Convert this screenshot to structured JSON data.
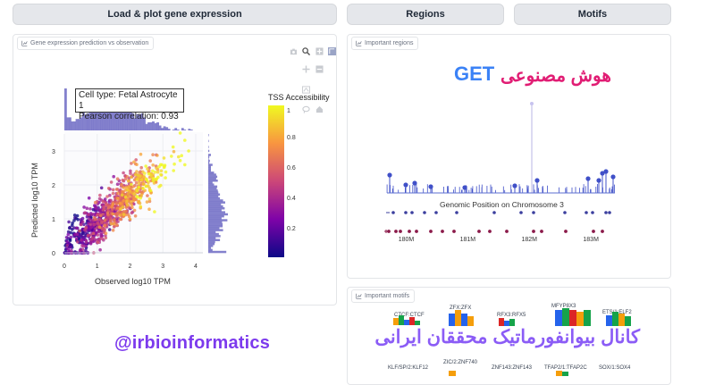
{
  "buttons": {
    "load_plot": "Load & plot gene expression",
    "regions": "Regions",
    "motifs": "Motifs"
  },
  "panels": {
    "gene_expression": {
      "tag": "Gene expression prediction vs observation",
      "annotation_line1": "Cell type: Fetal Astrocyte 1",
      "annotation_line2": "Pearson correlation: 0.93",
      "xlabel": "Observed log10 TPM",
      "ylabel": "Predicted log10 TPM",
      "colorbar_title": "TSS Accessibility"
    },
    "regions": {
      "tag": "Important regions",
      "axis_title": "Genomic Position on Chromosome 3"
    },
    "motifs": {
      "tag": "Important motifs",
      "labels_top": [
        "CTCF:CTCF",
        "ZFX:ZFX",
        "RFX3:RFX5",
        "MFYP8X3",
        "ETS/1:ELF2"
      ],
      "labels_bottom": [
        "KLF/SP/2:KLF12",
        "ZIC/2:ZNF740",
        "ZNF143:ZNF143",
        "TFAP2/1:TFAP2C",
        "SOX/1:SOX4"
      ]
    }
  },
  "watermarks": {
    "get": "GET",
    "persian_title": "هوش مصنوعی",
    "handle": "@irbioinformatics",
    "persian_channel": "کانال بیوانفورماتیک محققان ایرانی"
  },
  "colors": {
    "scatter_cmap": [
      "#0d0887",
      "#7e03a8",
      "#cc4778",
      "#f89540",
      "#f0f921"
    ],
    "marginal": "#6f6bc4",
    "lollipop": "#4050c8",
    "track_dot": "#3b3f9e",
    "track_dot_alt": "#8b1a4a"
  },
  "chart_data": [
    {
      "type": "scatter",
      "xlabel": "Observed log10 TPM",
      "ylabel": "Predicted log10 TPM",
      "xlim": [
        0,
        4
      ],
      "ylim": [
        0,
        3.5
      ],
      "x_ticks": [
        0,
        1,
        2,
        3,
        4
      ],
      "y_ticks": [
        0,
        1,
        2,
        3
      ],
      "colorbar": {
        "title": "TSS Accessibility",
        "ticks": [
          0.2,
          0.4,
          0.6,
          0.8,
          1
        ]
      },
      "pearson": 0.93
    },
    {
      "type": "bar",
      "xlabel": "Genomic Position on Chromosome 3",
      "x_ticks": [
        "180M",
        "181M",
        "182M",
        "183M"
      ],
      "xlim_mb": [
        179.7,
        183.4
      ]
    }
  ]
}
